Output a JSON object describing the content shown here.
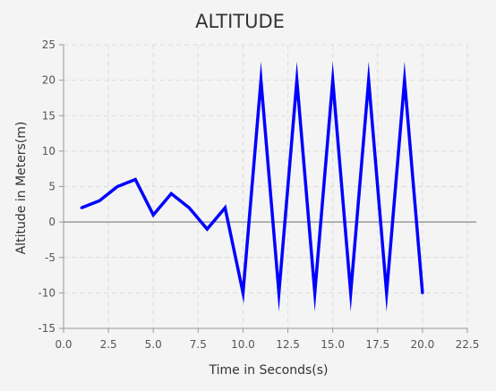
{
  "chart_data": {
    "type": "line",
    "title": "ALTITUDE",
    "xlabel": "Time in Seconds(s)",
    "ylabel": "Altitude in Meters(m)",
    "xlim": [
      0,
      22.5
    ],
    "ylim": [
      -15,
      25
    ],
    "x_ticks": [
      "0.0",
      "2.5",
      "5.0",
      "7.5",
      "10.0",
      "12.5",
      "15.0",
      "17.5",
      "20.0",
      "22.5"
    ],
    "y_ticks": [
      "-15",
      "-10",
      "-5",
      "0",
      "5",
      "10",
      "15",
      "20",
      "25"
    ],
    "grid": true,
    "series": [
      {
        "color": "#0000ff",
        "x": [
          1,
          2,
          3,
          4,
          5,
          6,
          7,
          8,
          9,
          10,
          11,
          12,
          13,
          14,
          15,
          16,
          17,
          18,
          19,
          20
        ],
        "y": [
          2,
          3,
          5,
          6,
          1,
          4,
          2,
          -1,
          2,
          -10,
          20,
          -10,
          20,
          -10,
          20,
          -10,
          20,
          -10,
          20,
          -10
        ]
      }
    ]
  }
}
